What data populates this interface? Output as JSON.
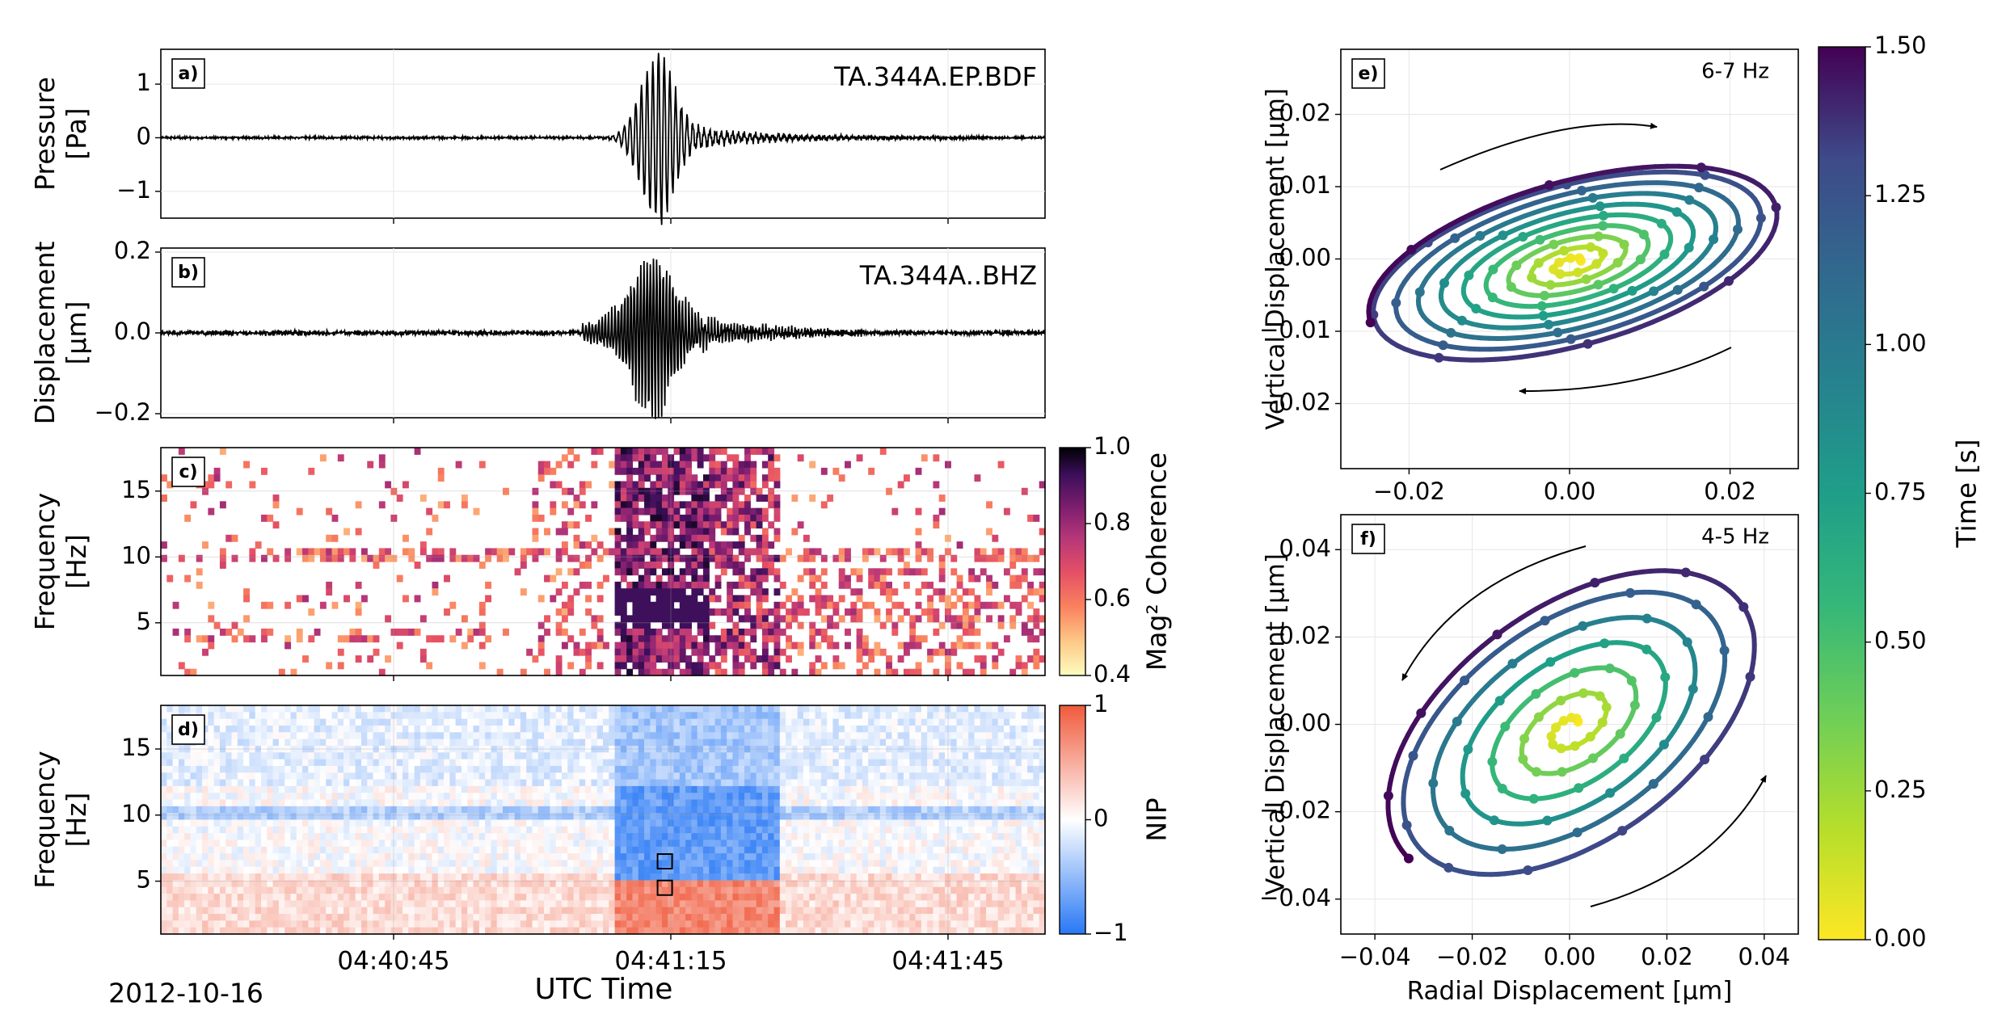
{
  "figure": {
    "date_label": "2012-10-16",
    "time_axis_label": "UTC Time"
  },
  "chart_data": [
    {
      "id": "a",
      "type": "line",
      "panel_label": "a)",
      "station": "TA.344A.EP.BDF",
      "ylabel": "Pressure\n[Pa]",
      "ylim": [
        -1.5,
        1.65
      ],
      "yticks": [
        -1,
        0,
        1
      ],
      "ytick_labels": [
        "−1",
        "0",
        "1"
      ],
      "xlim_s": [
        20,
        70
      ],
      "series_desc": "infrasound pressure waveform; wave packet peaks ~1.6 Pa near 04:41:08"
    },
    {
      "id": "b",
      "type": "line",
      "panel_label": "b)",
      "station": "TA.344A..BHZ",
      "ylabel": "Displacement\n[µm]",
      "ylim": [
        -0.21,
        0.21
      ],
      "yticks": [
        -0.2,
        0.0,
        0.2
      ],
      "ytick_labels": [
        "−0.2",
        "0.0",
        "0.2"
      ],
      "xlim_s": [
        20,
        70
      ],
      "series_desc": "seismic vertical displacement; peaks ~0.19 µm near 04:41:08"
    },
    {
      "id": "c",
      "type": "heatmap",
      "panel_label": "c)",
      "ylabel": "Frequency\n[Hz]",
      "ylim": [
        1,
        18.3
      ],
      "yticks": [
        5,
        10,
        15
      ],
      "colorbar": {
        "label": "Mag² Coherence",
        "range": [
          0.4,
          1.0
        ],
        "ticks": [
          "0.4",
          "0.6",
          "0.8",
          "1.0"
        ],
        "colormap": "magma_r"
      }
    },
    {
      "id": "d",
      "type": "heatmap",
      "panel_label": "d)",
      "ylabel": "Frequency\n[Hz]",
      "ylim": [
        1,
        18.3
      ],
      "yticks": [
        5,
        10,
        15
      ],
      "xticks": [
        "04:40:45",
        "04:41:15",
        "04:41:45"
      ],
      "xtick_seconds": [
        45,
        75,
        105
      ],
      "colorbar": {
        "label": "NIP",
        "range": [
          -1,
          1
        ],
        "ticks": [
          "−1",
          "0",
          "1"
        ],
        "colormap": "bwr"
      },
      "boxes": [
        {
          "time_s": 48.5,
          "freq_hz": 6.5
        },
        {
          "time_s": 48.5,
          "freq_hz": 4.5
        }
      ]
    },
    {
      "id": "e",
      "type": "scatter",
      "panel_label": "e)",
      "band": "6-7 Hz",
      "xlim": [
        -0.0285,
        0.0285
      ],
      "ylim": [
        -0.029,
        0.029
      ],
      "xticks": [
        -0.02,
        0.0,
        0.02
      ],
      "xtick_labels": [
        "−0.02",
        "0.00",
        "0.02"
      ],
      "yticks": [
        -0.02,
        -0.01,
        0.0,
        0.01,
        0.02
      ],
      "ytick_labels": [
        "−0.02",
        "−0.01",
        "0.00",
        "0.01",
        "0.02"
      ],
      "ylabel": "Vertical Displacement [µm]",
      "orbit": {
        "a_max": 0.0265,
        "b_max": 0.0112,
        "tilt_deg": 18,
        "cycles": 9.5
      }
    },
    {
      "id": "f",
      "type": "scatter",
      "panel_label": "f)",
      "band": "4-5 Hz",
      "xlim": [
        -0.047,
        0.047
      ],
      "ylim": [
        -0.048,
        0.048
      ],
      "xticks": [
        -0.04,
        -0.02,
        0.0,
        0.02,
        0.04
      ],
      "xtick_labels": [
        "−0.04",
        "−0.02",
        "0.00",
        "0.02",
        "0.04"
      ],
      "yticks": [
        -0.04,
        -0.02,
        0.0,
        0.02,
        0.04
      ],
      "ytick_labels": [
        "−0.04",
        "−0.02",
        "0.00",
        "0.02",
        "0.04"
      ],
      "xlabel": "Radial Displacement [µm]",
      "ylabel": "Vertical Displacement [µm]",
      "orbit": {
        "a_max": 0.045,
        "b_max": 0.026,
        "tilt_deg": 42,
        "cycles": 6.5
      }
    },
    {
      "id": "time-colorbar",
      "type": "colorbar",
      "label": "Time [s]",
      "range": [
        0.0,
        1.5
      ],
      "ticks": [
        "0.00",
        "0.25",
        "0.50",
        "0.75",
        "1.00",
        "1.25",
        "1.50"
      ],
      "colormap": "viridis_r"
    }
  ],
  "colors": {
    "box": "#000000",
    "arrow": "#000000",
    "grid": "#e6e6e6"
  }
}
